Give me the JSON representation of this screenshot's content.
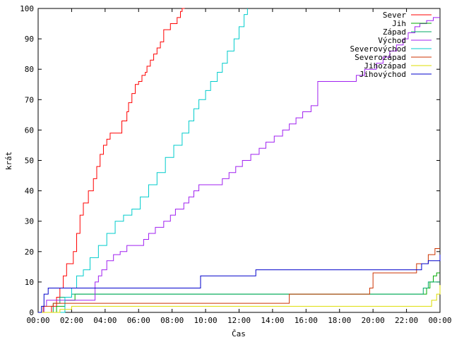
{
  "chart_data": {
    "type": "line",
    "step": true,
    "title": "",
    "xlabel": "Čas",
    "ylabel": "krát",
    "xlim": [
      0,
      24
    ],
    "ylim": [
      0,
      100
    ],
    "x_unit": "hours",
    "x_ticks": [
      0,
      2,
      4,
      6,
      8,
      10,
      12,
      14,
      16,
      18,
      20,
      22,
      24
    ],
    "x_tick_labels": [
      "00:00",
      "02:00",
      "04:00",
      "06:00",
      "08:00",
      "10:00",
      "12:00",
      "14:00",
      "16:00",
      "18:00",
      "20:00",
      "22:00",
      "00:00"
    ],
    "y_ticks": [
      0,
      10,
      20,
      30,
      40,
      50,
      60,
      70,
      80,
      90,
      100
    ],
    "y_tick_labels": [
      "0",
      "10",
      "20",
      "30",
      "40",
      "50",
      "60",
      "70",
      "80",
      "90",
      "100"
    ],
    "grid": false,
    "legend_position": "top-right",
    "series": [
      {
        "name": "Sever",
        "color": "#ff0000",
        "x": [
          0,
          0.8,
          1.1,
          1.3,
          1.5,
          1.7,
          2.1,
          2.3,
          2.5,
          2.7,
          3.0,
          3.3,
          3.5,
          3.7,
          3.9,
          4.1,
          4.3,
          4.5,
          4.7,
          5.0,
          5.3,
          5.4,
          5.6,
          5.8,
          6.0,
          6.2,
          6.4,
          6.5,
          6.7,
          6.9,
          7.1,
          7.3,
          7.5,
          7.7,
          7.9,
          8.3,
          8.5,
          8.6,
          8.75
        ],
        "y": [
          0,
          2,
          5,
          8,
          12,
          16,
          20,
          26,
          32,
          36,
          40,
          44,
          48,
          52,
          55,
          57,
          59,
          59,
          59,
          63,
          66,
          69,
          72,
          75,
          76,
          78,
          79,
          81,
          83,
          85,
          87,
          89,
          93,
          93,
          95,
          97,
          99,
          100,
          100
        ]
      },
      {
        "name": "Jih",
        "color": "#00aa00",
        "x": [
          0,
          1.1,
          1.6,
          2.2,
          22.0,
          23.2,
          23.4,
          23.6,
          23.8,
          24
        ],
        "y": [
          0,
          2,
          4,
          6,
          6,
          8,
          10,
          12,
          13,
          13
        ]
      },
      {
        "name": "Západ",
        "color": "#00aa66",
        "x": [
          0,
          0.9,
          1.3,
          2.0,
          22.5,
          23.0,
          23.3,
          24
        ],
        "y": [
          0,
          3,
          5,
          6,
          6,
          8,
          10,
          10
        ]
      },
      {
        "name": "Východ",
        "color": "#a020f0",
        "x": [
          0,
          0.35,
          0.5,
          2.6,
          3.4,
          3.6,
          3.8,
          4.1,
          4.5,
          4.9,
          5.3,
          5.7,
          6.3,
          6.6,
          7.0,
          7.5,
          7.9,
          8.2,
          8.7,
          9.0,
          9.3,
          9.6,
          9.9,
          10.4,
          11.0,
          11.4,
          11.8,
          12.2,
          12.7,
          13.2,
          13.6,
          14.1,
          14.6,
          15.0,
          15.4,
          15.8,
          16.3,
          16.7,
          17.3,
          18.0,
          19.0,
          19.5,
          20.2,
          20.6,
          21.0,
          21.4,
          21.8,
          22.1,
          22.5,
          22.8,
          23.2,
          23.6,
          24
        ],
        "y": [
          0,
          2,
          4,
          4,
          10,
          12,
          14,
          17,
          19,
          20,
          22,
          22,
          24,
          26,
          28,
          30,
          32,
          34,
          36,
          38,
          40,
          42,
          42,
          42,
          44,
          46,
          48,
          50,
          52,
          54,
          56,
          58,
          60,
          62,
          64,
          66,
          68,
          76,
          76,
          76,
          78,
          80,
          82,
          84,
          86,
          88,
          90,
          92,
          94,
          95,
          96,
          97,
          97
        ]
      },
      {
        "name": "Severovýchod",
        "color": "#00cccc",
        "x": [
          0,
          1.6,
          2.0,
          2.3,
          2.7,
          3.1,
          3.6,
          4.1,
          4.6,
          5.1,
          5.6,
          6.1,
          6.6,
          7.1,
          7.6,
          8.1,
          8.6,
          9.0,
          9.3,
          9.6,
          10.0,
          10.3,
          10.7,
          11.0,
          11.3,
          11.7,
          12.0,
          12.3,
          12.5
        ],
        "y": [
          0,
          5,
          8,
          12,
          14,
          18,
          22,
          26,
          30,
          32,
          34,
          38,
          42,
          46,
          51,
          55,
          59,
          63,
          67,
          70,
          73,
          76,
          79,
          82,
          86,
          90,
          94,
          98,
          100
        ]
      },
      {
        "name": "Severozápad",
        "color": "#cc3300",
        "x": [
          0,
          0.3,
          0.9,
          4.9,
          12.8,
          15.0,
          19.8,
          20.0,
          21.7,
          22.6,
          23.3,
          23.7,
          24
        ],
        "y": [
          0,
          2,
          3,
          3,
          3,
          6,
          8,
          13,
          13,
          16,
          19,
          21,
          21
        ]
      },
      {
        "name": "Jihozápad",
        "color": "#dddd00",
        "x": [
          0,
          1.3,
          2.0,
          23.0,
          23.5,
          23.8,
          24
        ],
        "y": [
          0,
          1,
          2,
          2,
          4,
          6,
          9
        ]
      },
      {
        "name": "Jihovýchod",
        "color": "#0000cc",
        "x": [
          0,
          0.2,
          0.35,
          0.6,
          9.3,
          9.7,
          13.0,
          22.6,
          22.9,
          23.3,
          24
        ],
        "y": [
          0,
          2,
          6,
          8,
          8,
          12,
          14,
          14,
          16,
          17,
          19
        ]
      }
    ]
  }
}
